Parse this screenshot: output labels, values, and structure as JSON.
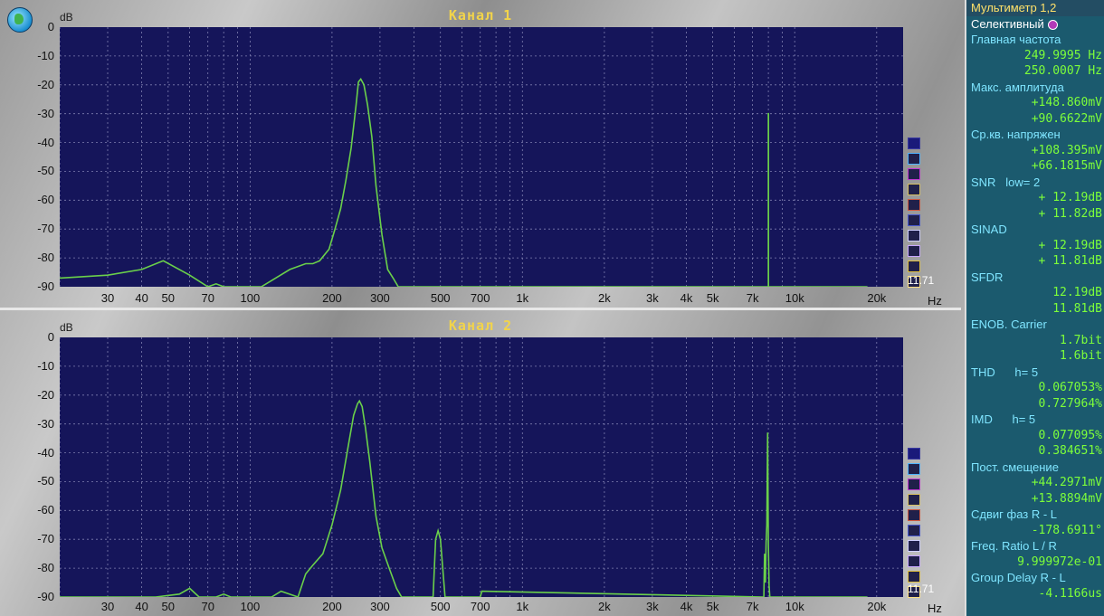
{
  "channel1": {
    "title": "Канал 1",
    "db_label": "dB",
    "readout": "11.71",
    "hz_label": "Hz"
  },
  "channel2": {
    "title": "Канал 2",
    "db_label": "dB",
    "readout": "11.71",
    "hz_label": "Hz"
  },
  "y_ticks": [
    "0",
    "-10",
    "-20",
    "-30",
    "-40",
    "-50",
    "-60",
    "-70",
    "-80",
    "-90"
  ],
  "x_ticks": [
    "30",
    "40",
    "50",
    "70",
    "100",
    "200",
    "300",
    "500",
    "700",
    "1k",
    "2k",
    "3k",
    "4k",
    "5k",
    "7k",
    "10k",
    "20k"
  ],
  "legend_colors": [
    "#1a1a7a",
    "#4fb3ff",
    "#c13ad0",
    "#d8c060",
    "#d05a40",
    "#4a5ad0",
    "#d0d0ff",
    "#c8a8ff",
    "#e0c040",
    "#ffe080"
  ],
  "colors": {
    "trace": "#6ad04a",
    "plot_bg": "#15155a",
    "grid": "#7f7fb0"
  },
  "chart_data": [
    {
      "type": "line",
      "title": "Канал 1",
      "ylabel": "dB",
      "xlabel": "Hz",
      "x_scale": "log",
      "xlim": [
        20,
        25000
      ],
      "ylim": [
        -90,
        0
      ],
      "x": [
        20,
        30,
        40,
        48,
        60,
        70,
        75,
        80,
        90,
        110,
        140,
        160,
        170,
        180,
        195,
        205,
        215,
        225,
        235,
        245,
        250,
        255,
        262,
        270,
        280,
        290,
        305,
        320,
        335,
        350,
        8000,
        8000,
        8010,
        8010,
        8020,
        18500
      ],
      "y": [
        -87,
        -86,
        -84,
        -81,
        -86,
        -91,
        -89,
        -91,
        -91,
        -91,
        -84,
        -82,
        -82,
        -81,
        -77,
        -70,
        -63,
        -53,
        -42,
        -27,
        -19,
        -18,
        -20,
        -27,
        -38,
        -55,
        -72,
        -84,
        -87,
        -91,
        -91,
        -30,
        -30,
        -91,
        -91,
        -91
      ]
    },
    {
      "type": "line",
      "title": "Канал 2",
      "ylabel": "dB",
      "xlabel": "Hz",
      "x_scale": "log",
      "xlim": [
        20,
        25000
      ],
      "ylim": [
        -90,
        0
      ],
      "x": [
        20,
        45,
        55,
        60,
        65,
        75,
        80,
        85,
        120,
        130,
        150,
        160,
        170,
        185,
        200,
        215,
        230,
        240,
        248,
        252,
        258,
        265,
        275,
        290,
        305,
        330,
        345,
        360,
        470,
        480,
        490,
        500,
        520,
        540,
        700,
        710,
        7700,
        7750,
        7800,
        7850,
        7900,
        7950,
        8000,
        8050,
        8100,
        18500
      ],
      "y": [
        -91,
        -91,
        -89,
        -87,
        -91,
        -91,
        -89,
        -91,
        -91,
        -88,
        -91,
        -82,
        -79,
        -75,
        -65,
        -53,
        -37,
        -27,
        -23,
        -22,
        -24,
        -31,
        -43,
        -62,
        -73,
        -82,
        -87,
        -91,
        -91,
        -70,
        -67,
        -70,
        -91,
        -91,
        -91,
        -88,
        -91,
        -75,
        -85,
        -71,
        -65,
        -33,
        -72,
        -86,
        -91,
        -91
      ]
    }
  ],
  "side_panel": {
    "header": "Мультиметр 1,2",
    "selective_label": "Селективный",
    "main_freq_label": "Главная частота",
    "main_freq_1": "249.9995 Hz",
    "main_freq_2": "250.0007 Hz",
    "max_amp_label": "Макс. амплитуда",
    "max_amp_1": "+148.860mV",
    "max_amp_2": "+90.6622mV",
    "rms_label": "Ср.кв. напряжен",
    "rms_1": "+108.395mV",
    "rms_2": "+66.1815mV",
    "snr_label": "SNR   low= 2",
    "snr_1": "+ 12.19dB",
    "snr_2": "+ 11.82dB",
    "sinad_label": "SINAD",
    "sinad_1": "+ 12.19dB",
    "sinad_2": "+ 11.81dB",
    "sfdr_label": "SFDR",
    "sfdr_1": "12.19dB",
    "sfdr_2": "11.81dB",
    "enob_label": "ENOB. Carrier",
    "enob_1": "1.7bit",
    "enob_2": "1.6bit",
    "thd_label": "THD      h= 5",
    "thd_1": "0.067053%",
    "thd_2": "0.727964%",
    "imd_label": "IMD      h= 5",
    "imd_1": "0.077095%",
    "imd_2": "0.384651%",
    "dc_label": "Пост. смещение",
    "dc_1": "+44.2971mV",
    "dc_2": "+13.8894mV",
    "phase_label": "Сдвиг фаз R - L",
    "phase_1": "-178.6911°",
    "freq_ratio_label": "Freq. Ratio  L / R",
    "freq_ratio_1": "9.999972e-01",
    "group_delay_label": "Group Delay R - L",
    "group_delay_1": "-4.1166us"
  }
}
